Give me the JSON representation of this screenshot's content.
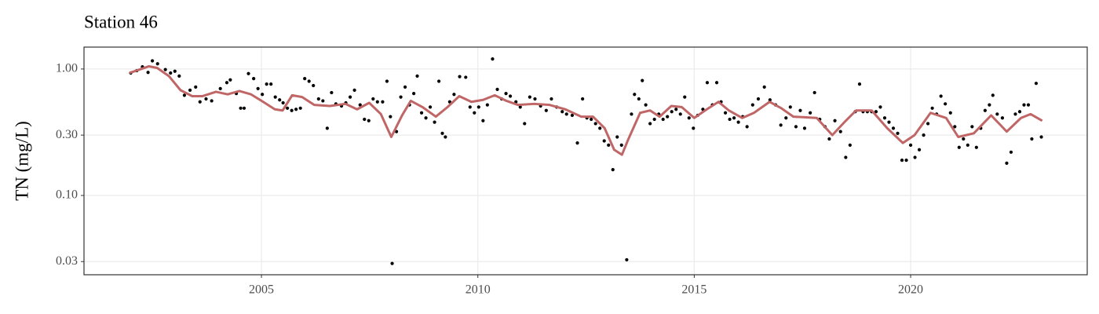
{
  "chart_data": {
    "type": "scatter",
    "title": "Station 46",
    "ylabel": "TN (mg/L)",
    "log_y": true,
    "grid": true,
    "xlim": [
      2000.9,
      2024.08
    ],
    "xticks": [
      2005,
      2010,
      2015,
      2020
    ],
    "ylim": [
      0.0236,
      1.49
    ],
    "yticks": [
      {
        "value": 0.03,
        "label": "0.03"
      },
      {
        "value": 0.1,
        "label": "0.10"
      },
      {
        "value": 0.3,
        "label": "0.30"
      },
      {
        "value": 1,
        "label": "1.00"
      }
    ],
    "series": [
      {
        "type": "scatter",
        "color": "#000000",
        "x": [
          2001.98,
          2002.12,
          2002.25,
          2002.38,
          2002.48,
          2002.6,
          2002.78,
          2002.9,
          2003.0,
          2003.1,
          2003.22,
          2003.35,
          2003.48,
          2003.58,
          2003.72,
          2003.85,
          2004.05,
          2004.2,
          2004.28,
          2004.42,
          2004.52,
          2004.6,
          2004.7,
          2004.82,
          2004.92,
          2005.02,
          2005.12,
          2005.22,
          2005.32,
          2005.42,
          2005.5,
          2005.6,
          2005.7,
          2005.8,
          2005.9,
          2006.0,
          2006.1,
          2006.2,
          2006.32,
          2006.42,
          2006.52,
          2006.62,
          2006.72,
          2006.85,
          2006.95,
          2007.05,
          2007.15,
          2007.28,
          2007.38,
          2007.48,
          2007.58,
          2007.68,
          2007.8,
          2007.9,
          2007.98,
          2008.02,
          2008.12,
          2008.22,
          2008.32,
          2008.42,
          2008.52,
          2008.6,
          2008.7,
          2008.8,
          2008.9,
          2009.0,
          2009.1,
          2009.18,
          2009.25,
          2009.35,
          2009.45,
          2009.58,
          2009.72,
          2009.82,
          2009.92,
          2010.02,
          2010.12,
          2010.22,
          2010.34,
          2010.45,
          2010.55,
          2010.65,
          2010.75,
          2010.88,
          2010.98,
          2011.08,
          2011.2,
          2011.32,
          2011.45,
          2011.58,
          2011.7,
          2011.82,
          2011.95,
          2012.05,
          2012.18,
          2012.3,
          2012.42,
          2012.52,
          2012.62,
          2012.72,
          2012.82,
          2012.92,
          2013.02,
          2013.12,
          2013.22,
          2013.32,
          2013.44,
          2013.55,
          2013.62,
          2013.72,
          2013.8,
          2013.88,
          2013.98,
          2014.08,
          2014.18,
          2014.28,
          2014.38,
          2014.48,
          2014.58,
          2014.68,
          2014.78,
          2014.88,
          2014.98,
          2015.08,
          2015.2,
          2015.3,
          2015.42,
          2015.52,
          2015.62,
          2015.72,
          2015.82,
          2015.92,
          2016.02,
          2016.12,
          2016.22,
          2016.35,
          2016.48,
          2016.62,
          2016.75,
          2016.88,
          2017.0,
          2017.12,
          2017.22,
          2017.35,
          2017.45,
          2017.55,
          2017.68,
          2017.78,
          2017.9,
          2018.02,
          2018.12,
          2018.25,
          2018.38,
          2018.5,
          2018.6,
          2018.72,
          2018.82,
          2018.9,
          2019.0,
          2019.1,
          2019.2,
          2019.3,
          2019.4,
          2019.5,
          2019.6,
          2019.7,
          2019.8,
          2019.9,
          2020.0,
          2020.1,
          2020.2,
          2020.3,
          2020.4,
          2020.5,
          2020.6,
          2020.7,
          2020.8,
          2020.92,
          2021.02,
          2021.12,
          2021.22,
          2021.32,
          2021.42,
          2021.52,
          2021.62,
          2021.72,
          2021.82,
          2021.9,
          2022.0,
          2022.12,
          2022.22,
          2022.32,
          2022.42,
          2022.52,
          2022.62,
          2022.72,
          2022.8,
          2022.9,
          2023.02
        ],
        "values": [
          0.93,
          0.97,
          1.04,
          0.94,
          1.16,
          1.1,
          0.99,
          0.93,
          0.96,
          0.88,
          0.62,
          0.68,
          0.72,
          0.55,
          0.58,
          0.56,
          0.7,
          0.78,
          0.82,
          0.64,
          0.49,
          0.49,
          0.92,
          0.84,
          0.7,
          0.63,
          0.76,
          0.76,
          0.6,
          0.57,
          0.54,
          0.49,
          0.47,
          0.48,
          0.49,
          0.84,
          0.8,
          0.74,
          0.58,
          0.56,
          0.34,
          0.65,
          0.53,
          0.51,
          0.54,
          0.6,
          0.68,
          0.52,
          0.4,
          0.39,
          0.58,
          0.55,
          0.55,
          0.8,
          0.42,
          0.029,
          0.32,
          0.6,
          0.72,
          0.52,
          0.64,
          0.88,
          0.45,
          0.41,
          0.5,
          0.38,
          0.8,
          0.31,
          0.29,
          0.55,
          0.63,
          0.87,
          0.86,
          0.5,
          0.45,
          0.5,
          0.39,
          0.52,
          1.2,
          0.69,
          0.58,
          0.64,
          0.61,
          0.55,
          0.5,
          0.37,
          0.6,
          0.58,
          0.51,
          0.47,
          0.58,
          0.5,
          0.46,
          0.44,
          0.43,
          0.26,
          0.58,
          0.41,
          0.4,
          0.37,
          0.34,
          0.27,
          0.25,
          0.16,
          0.29,
          0.25,
          0.031,
          0.44,
          0.63,
          0.58,
          0.81,
          0.52,
          0.37,
          0.4,
          0.44,
          0.4,
          0.42,
          0.46,
          0.48,
          0.44,
          0.6,
          0.41,
          0.34,
          0.43,
          0.48,
          0.78,
          0.52,
          0.78,
          0.55,
          0.45,
          0.4,
          0.41,
          0.38,
          0.42,
          0.35,
          0.52,
          0.58,
          0.72,
          0.57,
          0.52,
          0.36,
          0.41,
          0.5,
          0.35,
          0.47,
          0.34,
          0.45,
          0.65,
          0.4,
          0.35,
          0.28,
          0.39,
          0.32,
          0.2,
          0.25,
          0.46,
          0.76,
          0.46,
          0.46,
          0.46,
          0.46,
          0.5,
          0.41,
          0.38,
          0.34,
          0.31,
          0.19,
          0.19,
          0.25,
          0.2,
          0.23,
          0.3,
          0.37,
          0.49,
          0.44,
          0.61,
          0.53,
          0.45,
          0.35,
          0.24,
          0.28,
          0.25,
          0.35,
          0.24,
          0.34,
          0.47,
          0.52,
          0.62,
          0.44,
          0.41,
          0.18,
          0.22,
          0.44,
          0.46,
          0.52,
          0.52,
          0.28,
          0.77,
          0.29
        ]
      },
      {
        "type": "line",
        "color": "#c06666",
        "x": [
          2001.95,
          2002.22,
          2002.4,
          2002.59,
          2002.86,
          2003.13,
          2003.4,
          2003.64,
          2003.95,
          2004.22,
          2004.49,
          2004.76,
          2005.04,
          2005.31,
          2005.49,
          2005.71,
          2005.94,
          2006.22,
          2006.58,
          2006.94,
          2007.21,
          2007.49,
          2007.76,
          2008.0,
          2008.25,
          2008.45,
          2008.72,
          2009.03,
          2009.3,
          2009.57,
          2009.85,
          2010.12,
          2010.39,
          2010.66,
          2010.93,
          2011.3,
          2011.66,
          2012.02,
          2012.39,
          2012.66,
          2012.93,
          2013.15,
          2013.33,
          2013.48,
          2013.75,
          2013.98,
          2014.2,
          2014.47,
          2014.71,
          2015.0,
          2015.29,
          2015.56,
          2015.8,
          2016.11,
          2016.38,
          2016.74,
          2017.01,
          2017.29,
          2017.83,
          2018.19,
          2018.47,
          2018.74,
          2019.1,
          2019.46,
          2019.82,
          2020.09,
          2020.46,
          2020.82,
          2021.1,
          2021.46,
          2021.86,
          2022.22,
          2022.55,
          2022.77,
          2023.04
        ],
        "values": [
          0.93,
          1.0,
          1.05,
          1.02,
          0.88,
          0.68,
          0.61,
          0.61,
          0.66,
          0.63,
          0.67,
          0.63,
          0.55,
          0.48,
          0.47,
          0.62,
          0.6,
          0.52,
          0.51,
          0.53,
          0.48,
          0.54,
          0.44,
          0.29,
          0.43,
          0.56,
          0.5,
          0.42,
          0.5,
          0.61,
          0.55,
          0.57,
          0.62,
          0.56,
          0.52,
          0.53,
          0.52,
          0.48,
          0.42,
          0.42,
          0.34,
          0.23,
          0.21,
          0.28,
          0.45,
          0.47,
          0.42,
          0.51,
          0.5,
          0.41,
          0.48,
          0.55,
          0.47,
          0.41,
          0.45,
          0.55,
          0.49,
          0.42,
          0.41,
          0.3,
          0.38,
          0.47,
          0.47,
          0.34,
          0.26,
          0.3,
          0.45,
          0.41,
          0.29,
          0.31,
          0.43,
          0.32,
          0.41,
          0.44,
          0.39
        ]
      }
    ]
  }
}
